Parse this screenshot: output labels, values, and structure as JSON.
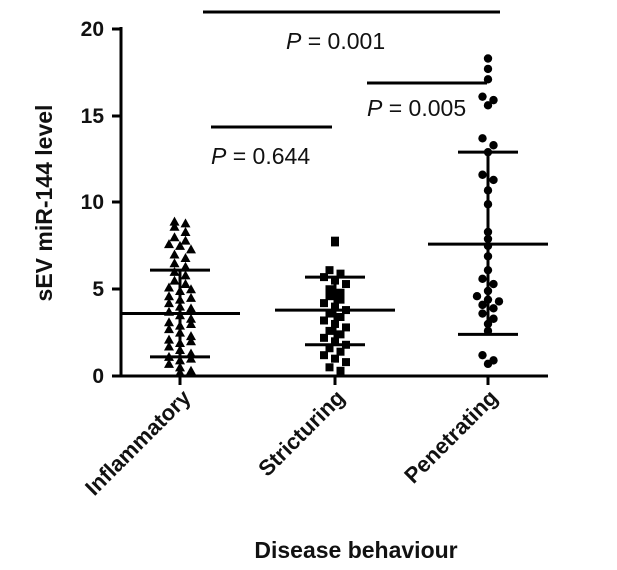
{
  "chart_data": {
    "type": "scatter",
    "xlabel": "Disease behaviour",
    "ylabel": "sEV miR-144 level",
    "ylim": [
      0,
      20
    ],
    "yticks": [
      "0",
      "5",
      "10",
      "15",
      "20"
    ],
    "categories": [
      "Inflammatory",
      "Stricturing",
      "Penetrating"
    ],
    "groups": [
      {
        "name": "Inflammatory",
        "marker": "triangle",
        "mean": 3.6,
        "sd_lower": 1.1,
        "sd_upper": 6.1,
        "values": [
          8.9,
          8.8,
          8.6,
          8.3,
          8.0,
          7.8,
          7.6,
          7.5,
          7.3,
          7.0,
          6.8,
          6.5,
          6.3,
          6.0,
          5.8,
          5.5,
          5.3,
          5.1,
          4.9,
          4.6,
          4.4,
          4.2,
          4.0,
          3.9,
          3.7,
          3.5,
          3.3,
          3.1,
          2.9,
          2.7,
          2.5,
          2.3,
          2.1,
          1.9,
          1.7,
          1.5,
          1.3,
          1.1,
          0.9,
          0.7,
          0.5,
          0.3,
          0.2,
          1.0,
          2.0,
          3.0,
          4.5,
          5.0
        ]
      },
      {
        "name": "Stricturing",
        "marker": "square",
        "mean": 3.8,
        "sd_lower": 1.8,
        "sd_upper": 5.7,
        "values": [
          7.8,
          7.7,
          6.1,
          5.9,
          5.7,
          5.5,
          5.3,
          5.0,
          4.8,
          4.6,
          4.4,
          4.2,
          4.0,
          3.8,
          3.6,
          3.4,
          3.2,
          3.0,
          2.8,
          2.6,
          2.4,
          2.2,
          2.0,
          1.8,
          1.6,
          1.4,
          1.2,
          1.0,
          0.8,
          0.5,
          0.3
        ]
      },
      {
        "name": "Penetrating",
        "marker": "circle",
        "mean": 7.6,
        "sd_lower": 2.4,
        "sd_upper": 12.9,
        "values": [
          18.3,
          17.7,
          17.1,
          16.1,
          15.9,
          15.6,
          13.7,
          13.3,
          12.9,
          11.6,
          11.3,
          10.7,
          9.9,
          8.3,
          7.9,
          7.5,
          6.9,
          6.1,
          5.6,
          5.3,
          4.9,
          4.6,
          4.4,
          4.3,
          4.1,
          3.9,
          3.6,
          3.3,
          3.0,
          2.6,
          1.2,
          0.9,
          0.7
        ]
      }
    ],
    "comparisons": [
      {
        "p_label": "P",
        "p_value": "= 0.001",
        "between": [
          "Inflammatory",
          "Penetrating"
        ]
      },
      {
        "p_label": "P",
        "p_value": "= 0.005",
        "between": [
          "Stricturing",
          "Penetrating"
        ]
      },
      {
        "p_label": "P",
        "p_value": "= 0.644",
        "between": [
          "Inflammatory",
          "Stricturing"
        ]
      }
    ]
  }
}
